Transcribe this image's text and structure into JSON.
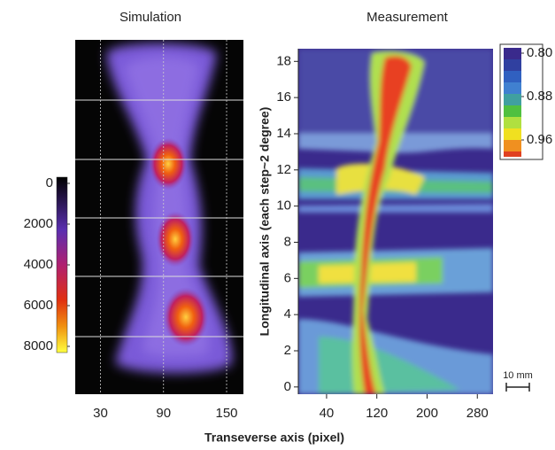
{
  "chart_data": [
    {
      "type": "heatmap",
      "title": "Simulation",
      "xlim": [
        6,
        166
      ],
      "xticks": [
        30,
        90,
        150
      ],
      "colorbar": {
        "lim": [
          0,
          8000
        ],
        "ticks": [
          0,
          2000,
          4000,
          6000,
          8000
        ]
      }
    },
    {
      "type": "heatmap",
      "title": "Measurement",
      "xlim": [
        -5,
        305
      ],
      "xticks": [
        40,
        120,
        200,
        280
      ],
      "ylim": [
        -0.4,
        18.7
      ],
      "yticks": [
        0,
        2,
        4,
        6,
        8,
        10,
        12,
        14,
        16,
        18
      ],
      "ylabel": "Longitudinal axis (each step~2 degree)",
      "colorbar": {
        "ticks": [
          {
            "value": 0.8,
            "label": "0.80"
          },
          0.88,
          0.96
        ]
      }
    }
  ],
  "figure": {
    "xlabel": "Transeverse axis (pixel)",
    "scale_bar": "10 mm"
  }
}
